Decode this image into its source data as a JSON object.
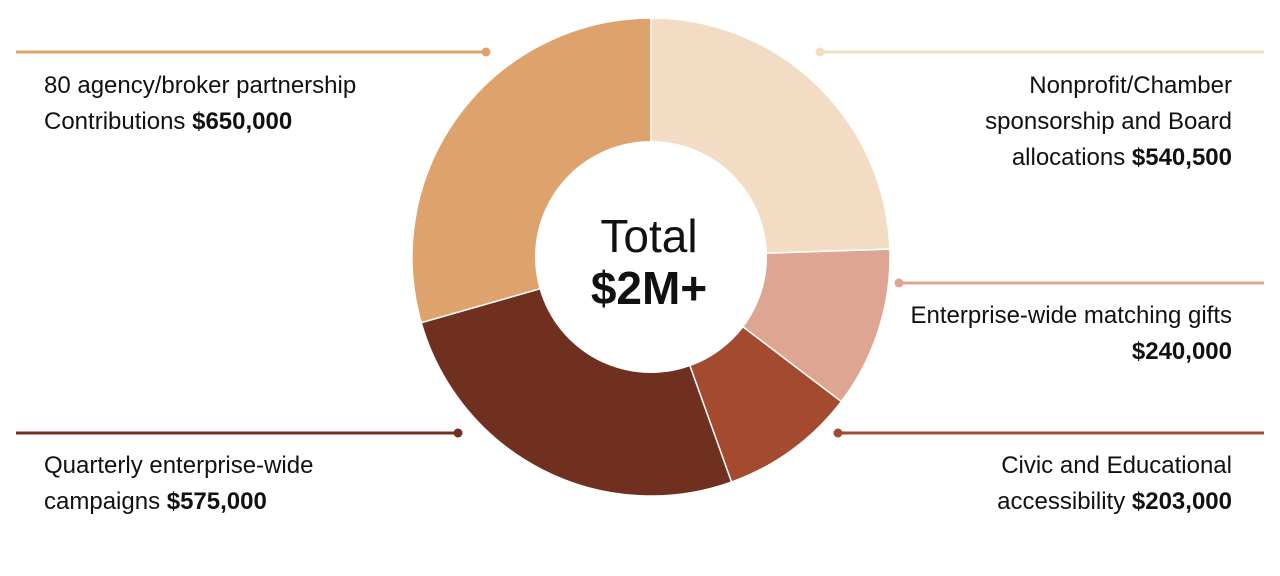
{
  "chart_data": {
    "type": "pie",
    "style": "donut",
    "center": {
      "line1": "Total",
      "line2": "$2M+"
    },
    "slices": [
      {
        "label": "80 agency/broker partnership Contributions",
        "value_text": "$650,000",
        "value": 650000,
        "color": "#DEA36D"
      },
      {
        "label": "Nonprofit/Chamber sponsorship and Board allocations",
        "value_text": "$540,500",
        "value": 540500,
        "color": "#F2DCC4"
      },
      {
        "label": "Enterprise-wide matching gifts",
        "value_text": "$240,000",
        "value": 240000,
        "color": "#DFA593"
      },
      {
        "label": "Civic and Educational accessibility",
        "value_text": "$203,000",
        "value": 203000,
        "color": "#A34A2F"
      },
      {
        "label": "Quarterly enterprise-wide campaigns",
        "value_text": "$575,000",
        "value": 575000,
        "color": "#6F3020"
      }
    ]
  }
}
